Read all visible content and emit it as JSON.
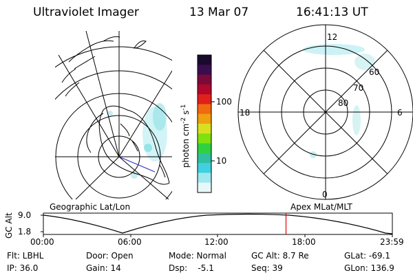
{
  "header": {
    "instrument": "Ultraviolet Imager",
    "date": "13 Mar 07",
    "time": "16:41:13 UT"
  },
  "colorbar": {
    "label": "photon cm",
    "label_sup1": "-2",
    "label_mid": "s",
    "label_sup2": "-1",
    "ticks": [
      "100",
      "10"
    ],
    "colors": [
      "#1a0a2e",
      "#3a0e4e",
      "#7a0a3a",
      "#b0082a",
      "#e0201a",
      "#f06a10",
      "#f0a010",
      "#d8e020",
      "#80e010",
      "#30d040",
      "#30c0a0",
      "#40d0e0",
      "#a0e8f0",
      "#e8f8fa"
    ]
  },
  "polar_plot": {
    "clock_labels": [
      "12",
      "18",
      "6",
      "0"
    ],
    "lat_labels": [
      "60",
      "70",
      "80"
    ]
  },
  "timeline": {
    "ylabel": "GC Alt",
    "y_ticks": [
      "9.0",
      "1.8"
    ],
    "left_label": "Geographic Lat/Lon",
    "right_label": "Apex MLat/MLT",
    "x_ticks": [
      "00:00",
      "06:00",
      "12:00",
      "18:00",
      "23:59"
    ],
    "current_time_fraction": 0.6953,
    "marker_color": "#e00000"
  },
  "status": {
    "flt": "Flt: LBHL",
    "ip": "IP: 36.0",
    "door": "Door: Open",
    "gain": "Gain: 14",
    "mode": "Mode: Normal",
    "dsp": "Dsp:    -5.1",
    "gc_alt": "GC Alt: 8.7 Re",
    "seq": "Seq: 39",
    "glat": "GLat: -69.1",
    "glon": "GLon: 136.9"
  }
}
